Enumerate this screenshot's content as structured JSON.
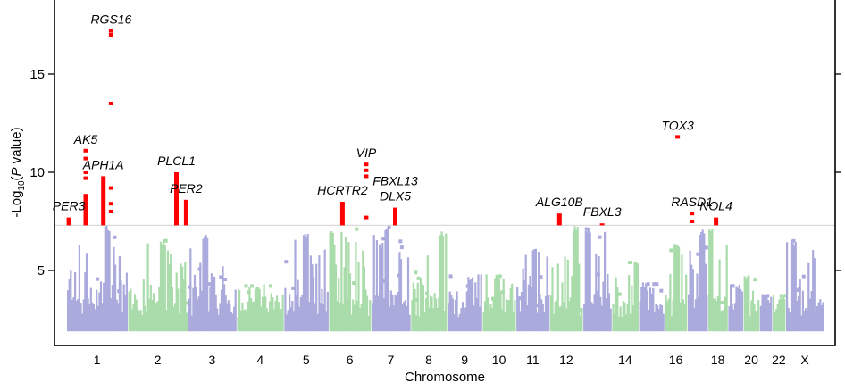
{
  "chart_data": {
    "type": "scatter",
    "subtype": "manhattan",
    "title": "",
    "xlabel": "Chromosome",
    "ylabel_prefix": "-Log",
    "ylabel_sub": "10",
    "ylabel_open": "(",
    "ylabel_italic": "P",
    "ylabel_suffix": " value)",
    "ylim": [
      1.2,
      18.8
    ],
    "yticks": [
      5,
      10,
      15
    ],
    "significance_threshold": 7.3,
    "colors": {
      "odd": "#aaaadc",
      "even": "#a9dcaa",
      "significant": "#ff0000",
      "threshold_line": "#d9d9d9"
    },
    "chromosomes": [
      {
        "name": "1",
        "length_mb": 249,
        "max": 7.3,
        "label": "1"
      },
      {
        "name": "2",
        "length_mb": 243,
        "max": 6.6,
        "label": "2"
      },
      {
        "name": "3",
        "length_mb": 198,
        "max": 6.9,
        "label": "3"
      },
      {
        "name": "4",
        "length_mb": 191,
        "max": 4.3,
        "label": "4"
      },
      {
        "name": "5",
        "length_mb": 181,
        "max": 6.9,
        "label": "5"
      },
      {
        "name": "6",
        "length_mb": 171,
        "max": 7.2,
        "label": "6"
      },
      {
        "name": "7",
        "length_mb": 159,
        "max": 7.3,
        "label": "7"
      },
      {
        "name": "8",
        "length_mb": 146,
        "max": 7.0,
        "label": "8"
      },
      {
        "name": "9",
        "length_mb": 141,
        "max": 4.8,
        "label": "9"
      },
      {
        "name": "10",
        "length_mb": 135,
        "max": 4.8,
        "label": "10"
      },
      {
        "name": "11",
        "length_mb": 135,
        "max": 6.1,
        "label": "11"
      },
      {
        "name": "12",
        "length_mb": 133,
        "max": 7.3,
        "label": "12"
      },
      {
        "name": "13",
        "length_mb": 115,
        "max": 7.2,
        "label": ""
      },
      {
        "name": "14",
        "length_mb": 107,
        "max": 5.5,
        "label": "14"
      },
      {
        "name": "15",
        "length_mb": 102,
        "max": 4.4,
        "label": ""
      },
      {
        "name": "16",
        "length_mb": 90,
        "max": 6.4,
        "label": "16"
      },
      {
        "name": "17",
        "length_mb": 81,
        "max": 7.1,
        "label": ""
      },
      {
        "name": "18",
        "length_mb": 78,
        "max": 7.3,
        "label": "18"
      },
      {
        "name": "19",
        "length_mb": 59,
        "max": 4.3,
        "label": ""
      },
      {
        "name": "20",
        "length_mb": 63,
        "max": 4.8,
        "label": "20"
      },
      {
        "name": "21",
        "length_mb": 48,
        "max": 3.8,
        "label": ""
      },
      {
        "name": "22",
        "length_mb": 51,
        "max": 3.8,
        "label": "22"
      },
      {
        "name": "X",
        "length_mb": 155,
        "max": 6.6,
        "label": "X"
      }
    ],
    "significant_loci": [
      {
        "gene": [
          "PER3"
        ],
        "chr": "1",
        "pos_mb": 7.8,
        "bar_top": 7.7,
        "points": []
      },
      {
        "gene": [
          "AK5"
        ],
        "chr": "1",
        "pos_mb": 77.7,
        "bar_top": 8.9,
        "points": [
          9.7,
          10.0,
          10.7,
          11.1
        ]
      },
      {
        "gene": [
          "APH1A"
        ],
        "chr": "1",
        "pos_mb": 150.2,
        "bar_top": 9.8,
        "points": []
      },
      {
        "gene": [
          "RGS16"
        ],
        "chr": "1",
        "pos_mb": 182.5,
        "bar_top": null,
        "points": [
          8.0,
          8.4,
          9.2,
          13.5,
          17.0,
          17.2
        ]
      },
      {
        "gene": [
          "PLCL1"
        ],
        "chr": "2",
        "pos_mb": 198.9,
        "bar_top": 10.0,
        "points": []
      },
      {
        "gene": [
          "PER2"
        ],
        "chr": "2",
        "pos_mb": 239.2,
        "bar_top": 8.6,
        "points": []
      },
      {
        "gene": [
          "HCRTR2"
        ],
        "chr": "6",
        "pos_mb": 55.0,
        "bar_top": 8.5,
        "points": []
      },
      {
        "gene": [
          "VIP"
        ],
        "chr": "6",
        "pos_mb": 153.0,
        "bar_top": null,
        "points": [
          7.7,
          9.8,
          10.1,
          10.4
        ]
      },
      {
        "gene": [
          "FBXL13",
          "DLX5"
        ],
        "chr": "7",
        "pos_mb": 98.0,
        "bar_top": 8.2,
        "points": []
      },
      {
        "gene": [
          "ALG10B"
        ],
        "chr": "12",
        "pos_mb": 38.7,
        "bar_top": 7.9,
        "points": []
      },
      {
        "gene": [
          "FBXL3"
        ],
        "chr": "13",
        "pos_mb": 77.6,
        "bar_top": 7.4,
        "points": []
      },
      {
        "gene": [
          "TOX3"
        ],
        "chr": "16",
        "pos_mb": 52.5,
        "bar_top": null,
        "points": [
          11.8
        ]
      },
      {
        "gene": [
          "RASD1"
        ],
        "chr": "17",
        "pos_mb": 17.4,
        "bar_top": null,
        "points": [
          7.5,
          7.9
        ]
      },
      {
        "gene": [
          "NOL4"
        ],
        "chr": "18",
        "pos_mb": 31.5,
        "bar_top": 7.7,
        "points": []
      }
    ]
  }
}
